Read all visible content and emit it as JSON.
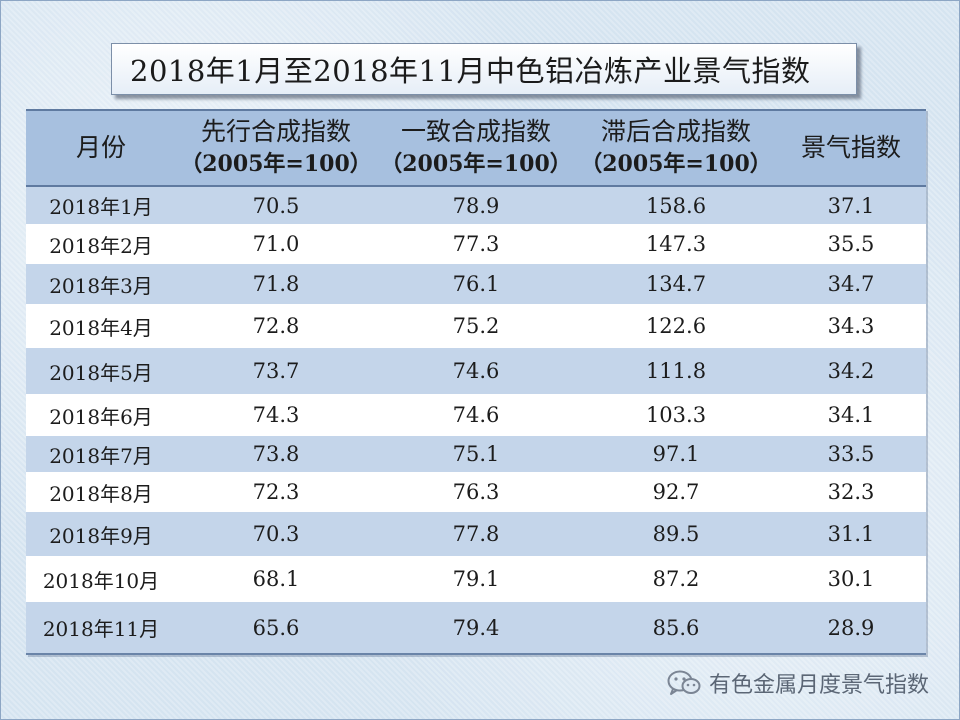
{
  "title": "2018年1月至2018年11月中色铝冶炼产业景气指数",
  "table": {
    "headers": [
      {
        "label": "月份",
        "sub": ""
      },
      {
        "label": "先行合成指数",
        "sub": "（2005年=100）"
      },
      {
        "label": "一致合成指数",
        "sub": "（2005年=100）"
      },
      {
        "label": "滞后合成指数",
        "sub": "（2005年=100）"
      },
      {
        "label": "景气指数",
        "sub": ""
      }
    ],
    "rows": [
      [
        "2018年1月",
        "70.5",
        "78.9",
        "158.6",
        "37.1"
      ],
      [
        "2018年2月",
        "71.0",
        "77.3",
        "147.3",
        "35.5"
      ],
      [
        "2018年3月",
        "71.8",
        "76.1",
        "134.7",
        "34.7"
      ],
      [
        "2018年4月",
        "72.8",
        "75.2",
        "122.6",
        "34.3"
      ],
      [
        "2018年5月",
        "73.7",
        "74.6",
        "111.8",
        "34.2"
      ],
      [
        "2018年6月",
        "74.3",
        "74.6",
        "103.3",
        "34.1"
      ],
      [
        "2018年7月",
        "73.8",
        "75.1",
        "97.1",
        "33.5"
      ],
      [
        "2018年8月",
        "72.3",
        "76.3",
        "92.7",
        "32.3"
      ],
      [
        "2018年9月",
        "70.3",
        "77.8",
        "89.5",
        "31.1"
      ],
      [
        "2018年10月",
        "68.1",
        "79.1",
        "87.2",
        "30.1"
      ],
      [
        "2018年11月",
        "65.6",
        "79.4",
        "85.6",
        "28.9"
      ]
    ]
  },
  "watermark": {
    "text": "有色金属月度景气指数",
    "icon": "wechat-icon"
  },
  "colors": {
    "header_bg": "#a7c0df",
    "band_bg": "#c4d5ea",
    "row_bg": "#ffffff"
  }
}
